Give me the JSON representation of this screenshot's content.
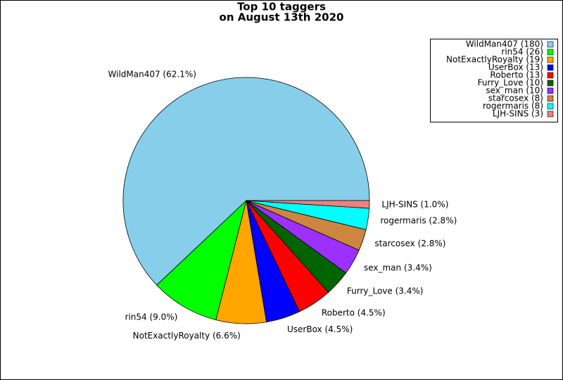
{
  "chart_data": {
    "type": "pie",
    "title": [
      "Top 10 taggers",
      "on August 13th 2020"
    ],
    "categories": [
      "WildMan407 (180)",
      "rin54 (26)",
      "NotExactlyRoyalty (19)",
      "UserBox (13)",
      "Roberto (13)",
      "Furry_Love (10)",
      "sex_man (10)",
      "starcosex (8)",
      "rogermaris (8)",
      "LJH-SINS (3)"
    ],
    "values": [
      62.1,
      9.0,
      6.6,
      4.5,
      4.5,
      3.4,
      3.4,
      2.8,
      2.8,
      1.0
    ],
    "value_labels": [
      "WildMan407 (62.1%)",
      "rin54 (9.0%)",
      "NotExactlyRoyalty (6.6%)",
      "UserBox (4.5%)",
      "Roberto (4.5%)",
      "Furry_Love (3.4%)",
      "sex_man (3.4%)",
      "starcosex (2.8%)",
      "rogermaris (2.8%)",
      "LJH-SINS (1.0%)"
    ],
    "colors": [
      "#87ceeb",
      "#00ff00",
      "#ffa500",
      "#0000ff",
      "#ff0000",
      "#006400",
      "#9b30ff",
      "#cd853f",
      "#00ffff",
      "#f08080"
    ],
    "legend": "upper right"
  }
}
